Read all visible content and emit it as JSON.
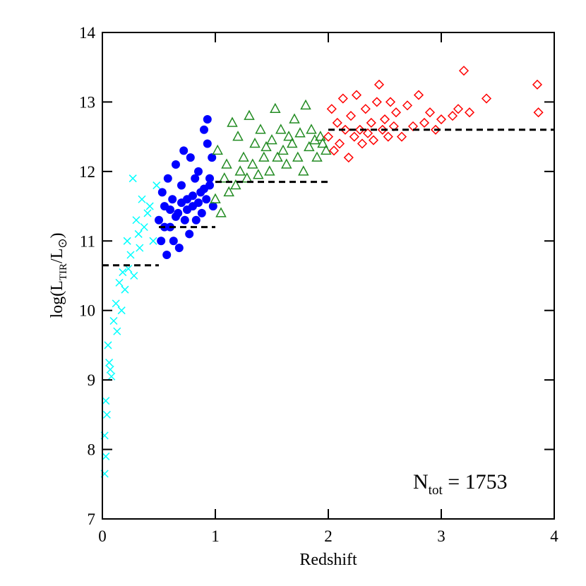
{
  "chart_data": {
    "type": "scatter",
    "x_label": "Redshift",
    "y_label_parts": [
      "log(L",
      "TIR",
      "/L",
      "⊙",
      ")"
    ],
    "annotation_parts": [
      "N",
      "tot",
      " = 1753"
    ],
    "xlim": [
      0,
      4
    ],
    "ylim": [
      7,
      14
    ],
    "xticks": [
      0,
      1,
      2,
      3,
      4
    ],
    "yticks": [
      7,
      8,
      9,
      10,
      11,
      12,
      13,
      14
    ],
    "series": [
      {
        "color": "#00ffff",
        "marker": "x",
        "x": [
          0.02,
          0.02,
          0.03,
          0.03,
          0.04,
          0.05,
          0.06,
          0.07,
          0.08,
          0.1,
          0.12,
          0.13,
          0.15,
          0.17,
          0.18,
          0.2,
          0.22,
          0.23,
          0.25,
          0.27,
          0.28,
          0.3,
          0.32,
          0.33,
          0.35,
          0.37,
          0.4,
          0.42,
          0.45,
          0.48
        ],
        "values": [
          7.65,
          8.2,
          7.9,
          8.7,
          8.5,
          9.5,
          9.25,
          9.15,
          9.05,
          9.85,
          10.1,
          9.7,
          10.4,
          10.0,
          10.55,
          10.3,
          11.0,
          10.6,
          10.8,
          11.9,
          10.5,
          11.3,
          11.1,
          10.9,
          11.6,
          11.2,
          11.4,
          11.5,
          11.0,
          11.8
        ]
      },
      {
        "color": "#0000ff",
        "marker": "circle",
        "x": [
          0.5,
          0.52,
          0.53,
          0.55,
          0.57,
          0.58,
          0.6,
          0.62,
          0.63,
          0.65,
          0.67,
          0.68,
          0.7,
          0.72,
          0.73,
          0.75,
          0.77,
          0.78,
          0.8,
          0.82,
          0.83,
          0.85,
          0.87,
          0.88,
          0.9,
          0.92,
          0.93,
          0.95,
          0.97,
          0.98,
          0.6,
          0.7,
          0.8,
          0.9,
          0.55,
          0.65,
          0.75,
          0.85,
          0.95,
          0.93
        ],
        "values": [
          11.3,
          11.0,
          11.7,
          11.5,
          10.8,
          11.9,
          11.2,
          11.6,
          11.0,
          12.1,
          11.4,
          10.9,
          11.8,
          12.3,
          11.3,
          11.6,
          11.1,
          12.2,
          11.5,
          11.9,
          11.3,
          12.0,
          11.7,
          11.4,
          12.6,
          11.6,
          12.75,
          11.8,
          12.2,
          11.5,
          11.45,
          11.55,
          11.65,
          11.75,
          11.2,
          11.35,
          11.45,
          11.55,
          11.9,
          12.4
        ]
      },
      {
        "color": "#228b22",
        "marker": "triangle",
        "x": [
          1.0,
          1.02,
          1.05,
          1.08,
          1.1,
          1.12,
          1.15,
          1.18,
          1.2,
          1.22,
          1.25,
          1.28,
          1.3,
          1.33,
          1.35,
          1.38,
          1.4,
          1.43,
          1.45,
          1.48,
          1.5,
          1.53,
          1.55,
          1.58,
          1.6,
          1.63,
          1.65,
          1.68,
          1.7,
          1.73,
          1.75,
          1.78,
          1.8,
          1.83,
          1.85,
          1.88,
          1.9,
          1.93,
          1.95,
          1.98
        ],
        "values": [
          11.6,
          12.3,
          11.4,
          11.9,
          12.1,
          11.7,
          12.7,
          11.8,
          12.5,
          12.0,
          12.2,
          11.9,
          12.8,
          12.1,
          12.4,
          11.95,
          12.6,
          12.2,
          12.35,
          12.0,
          12.45,
          12.9,
          12.2,
          12.6,
          12.3,
          12.1,
          12.5,
          12.4,
          12.75,
          12.2,
          12.55,
          12.0,
          12.95,
          12.35,
          12.6,
          12.45,
          12.2,
          12.5,
          12.4,
          12.3
        ]
      },
      {
        "color": "#ff0000",
        "marker": "diamond",
        "x": [
          2.0,
          2.03,
          2.05,
          2.08,
          2.1,
          2.13,
          2.15,
          2.18,
          2.2,
          2.23,
          2.25,
          2.28,
          2.3,
          2.33,
          2.35,
          2.38,
          2.4,
          2.43,
          2.45,
          2.48,
          2.5,
          2.53,
          2.55,
          2.58,
          2.6,
          2.65,
          2.7,
          2.75,
          2.8,
          2.85,
          2.9,
          2.95,
          3.0,
          3.1,
          3.15,
          3.2,
          3.25,
          3.4,
          3.85,
          3.86
        ],
        "values": [
          12.5,
          12.9,
          12.3,
          12.7,
          12.4,
          13.05,
          12.6,
          12.2,
          12.8,
          12.5,
          13.1,
          12.6,
          12.4,
          12.9,
          12.55,
          12.7,
          12.45,
          13.0,
          13.25,
          12.6,
          12.75,
          12.5,
          13.0,
          12.65,
          12.85,
          12.5,
          12.95,
          12.65,
          13.1,
          12.7,
          12.85,
          12.6,
          12.75,
          12.8,
          12.9,
          13.45,
          12.85,
          13.05,
          13.25,
          12.85
        ]
      }
    ],
    "reference_lines": [
      {
        "x": [
          0,
          0.5
        ],
        "y": 10.65
      },
      {
        "x": [
          0.5,
          1
        ],
        "y": 11.2
      },
      {
        "x": [
          1,
          2
        ],
        "y": 11.85
      },
      {
        "x": [
          2,
          4
        ],
        "y": 12.6
      }
    ]
  }
}
